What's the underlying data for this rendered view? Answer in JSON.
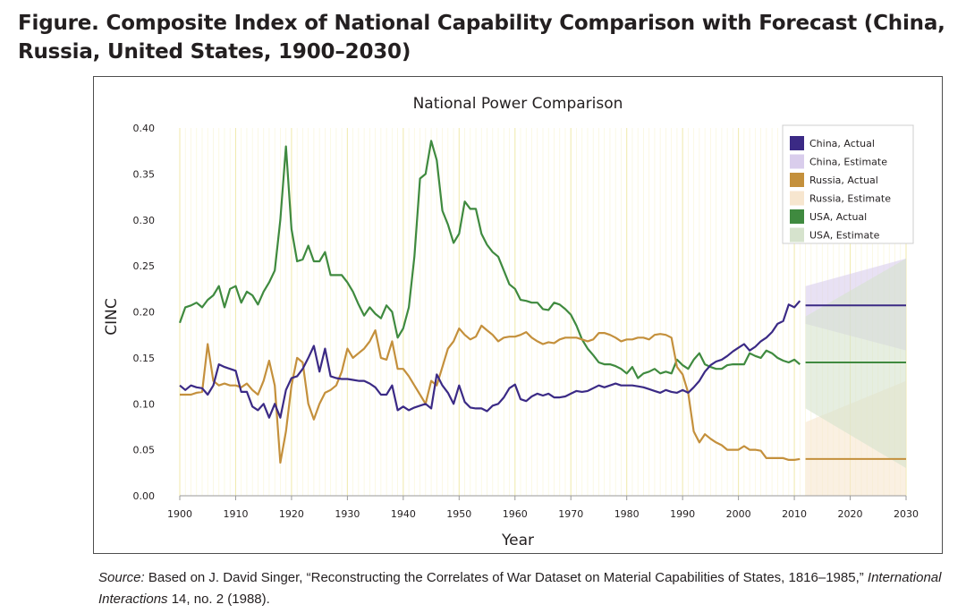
{
  "figure": {
    "title": "Figure. Composite Index of National Capability Comparison with Forecast (China, Russia, United States, 1900–2030)"
  },
  "source": {
    "label": "Source:",
    "text_1": " Based on J. David Singer, “Reconstructing the Correlates of War Dataset on Material Capabilities of States, 1816–1985,” ",
    "journal": "International Interactions",
    "text_2": " 14, no. 2 (1988)."
  },
  "chart_data": {
    "type": "line",
    "title": "National Power Comparison",
    "xlabel": "Year",
    "ylabel": "CINC",
    "xlim": [
      1900,
      2030
    ],
    "ylim": [
      0,
      0.4
    ],
    "x_ticks": [
      "1900",
      "1910",
      "1920",
      "1930",
      "1940",
      "1950",
      "1960",
      "1970",
      "1980",
      "1990",
      "2000",
      "2010",
      "2020",
      "2030"
    ],
    "y_ticks": [
      "0.00",
      "0.05",
      "0.10",
      "0.15",
      "0.20",
      "0.25",
      "0.30",
      "0.35",
      "0.40"
    ],
    "grid": "vertical",
    "legend_position": "top-right",
    "legend": [
      {
        "label": "China, Actual",
        "color": "#3b2a85"
      },
      {
        "label": "China, Estimate",
        "color": "#d9cdec"
      },
      {
        "label": "Russia, Actual",
        "color": "#c4903c"
      },
      {
        "label": "Russia, Estimate",
        "color": "#f7e6cf"
      },
      {
        "label": "USA, Actual",
        "color": "#3f8a3f"
      },
      {
        "label": "USA, Estimate",
        "color": "#d6e3cd"
      }
    ],
    "series": [
      {
        "name": "USA, Actual",
        "color": "#3f8a3f",
        "x": [
          1900,
          1901,
          1902,
          1903,
          1904,
          1905,
          1906,
          1907,
          1908,
          1909,
          1910,
          1911,
          1912,
          1913,
          1914,
          1915,
          1916,
          1917,
          1918,
          1919,
          1920,
          1921,
          1922,
          1923,
          1924,
          1925,
          1926,
          1927,
          1928,
          1929,
          1930,
          1931,
          1932,
          1933,
          1934,
          1935,
          1936,
          1937,
          1938,
          1939,
          1940,
          1941,
          1942,
          1943,
          1944,
          1945,
          1946,
          1947,
          1948,
          1949,
          1950,
          1951,
          1952,
          1953,
          1954,
          1955,
          1956,
          1957,
          1958,
          1959,
          1960,
          1961,
          1962,
          1963,
          1964,
          1965,
          1966,
          1967,
          1968,
          1969,
          1970,
          1971,
          1972,
          1973,
          1974,
          1975,
          1976,
          1977,
          1978,
          1979,
          1980,
          1981,
          1982,
          1983,
          1984,
          1985,
          1986,
          1987,
          1988,
          1989,
          1990,
          1991,
          1992,
          1993,
          1994,
          1995,
          1996,
          1997,
          1998,
          1999,
          2000,
          2001,
          2002,
          2003,
          2004,
          2005,
          2006,
          2007,
          2008,
          2009,
          2010,
          2011
        ],
        "y": [
          0.188,
          0.205,
          0.207,
          0.21,
          0.205,
          0.213,
          0.218,
          0.228,
          0.205,
          0.225,
          0.228,
          0.21,
          0.222,
          0.218,
          0.208,
          0.222,
          0.232,
          0.245,
          0.3,
          0.38,
          0.29,
          0.255,
          0.257,
          0.272,
          0.255,
          0.255,
          0.265,
          0.24,
          0.24,
          0.24,
          0.232,
          0.222,
          0.208,
          0.196,
          0.205,
          0.198,
          0.193,
          0.207,
          0.2,
          0.172,
          0.182,
          0.205,
          0.26,
          0.345,
          0.35,
          0.386,
          0.365,
          0.31,
          0.295,
          0.275,
          0.285,
          0.32,
          0.312,
          0.312,
          0.285,
          0.273,
          0.265,
          0.26,
          0.245,
          0.23,
          0.225,
          0.213,
          0.212,
          0.21,
          0.21,
          0.203,
          0.202,
          0.21,
          0.208,
          0.203,
          0.197,
          0.185,
          0.17,
          0.16,
          0.153,
          0.145,
          0.143,
          0.143,
          0.141,
          0.138,
          0.133,
          0.14,
          0.128,
          0.133,
          0.135,
          0.138,
          0.133,
          0.135,
          0.133,
          0.148,
          0.142,
          0.138,
          0.148,
          0.155,
          0.143,
          0.14,
          0.138,
          0.138,
          0.142,
          0.143,
          0.143,
          0.143,
          0.155,
          0.152,
          0.15,
          0.158,
          0.155,
          0.15,
          0.147,
          0.145,
          0.148,
          0.143
        ]
      },
      {
        "name": "Russia, Actual",
        "color": "#c4903c",
        "x": [
          1900,
          1901,
          1902,
          1903,
          1904,
          1905,
          1906,
          1907,
          1908,
          1909,
          1910,
          1911,
          1912,
          1913,
          1914,
          1915,
          1916,
          1917,
          1918,
          1919,
          1920,
          1921,
          1922,
          1923,
          1924,
          1925,
          1926,
          1927,
          1928,
          1929,
          1930,
          1931,
          1932,
          1933,
          1934,
          1935,
          1936,
          1937,
          1938,
          1939,
          1940,
          1941,
          1942,
          1943,
          1944,
          1945,
          1946,
          1947,
          1948,
          1949,
          1950,
          1951,
          1952,
          1953,
          1954,
          1955,
          1956,
          1957,
          1958,
          1959,
          1960,
          1961,
          1962,
          1963,
          1964,
          1965,
          1966,
          1967,
          1968,
          1969,
          1970,
          1971,
          1972,
          1973,
          1974,
          1975,
          1976,
          1977,
          1978,
          1979,
          1980,
          1981,
          1982,
          1983,
          1984,
          1985,
          1986,
          1987,
          1988,
          1989,
          1990,
          1991,
          1992,
          1993,
          1994,
          1995,
          1996,
          1997,
          1998,
          1999,
          2000,
          2001,
          2002,
          2003,
          2004,
          2005,
          2006,
          2007,
          2008,
          2009,
          2010,
          2011
        ],
        "y": [
          0.11,
          0.11,
          0.11,
          0.112,
          0.113,
          0.165,
          0.125,
          0.12,
          0.122,
          0.12,
          0.12,
          0.118,
          0.122,
          0.115,
          0.11,
          0.125,
          0.147,
          0.12,
          0.036,
          0.07,
          0.12,
          0.15,
          0.145,
          0.1,
          0.083,
          0.1,
          0.112,
          0.115,
          0.12,
          0.135,
          0.16,
          0.15,
          0.155,
          0.16,
          0.168,
          0.18,
          0.15,
          0.148,
          0.168,
          0.138,
          0.138,
          0.13,
          0.12,
          0.11,
          0.1,
          0.125,
          0.12,
          0.14,
          0.16,
          0.168,
          0.182,
          0.175,
          0.17,
          0.173,
          0.185,
          0.18,
          0.175,
          0.168,
          0.172,
          0.173,
          0.173,
          0.175,
          0.178,
          0.172,
          0.168,
          0.165,
          0.167,
          0.166,
          0.17,
          0.172,
          0.172,
          0.172,
          0.17,
          0.168,
          0.17,
          0.177,
          0.177,
          0.175,
          0.172,
          0.168,
          0.17,
          0.17,
          0.172,
          0.172,
          0.17,
          0.175,
          0.176,
          0.175,
          0.172,
          0.14,
          0.132,
          0.112,
          0.07,
          0.058,
          0.067,
          0.062,
          0.058,
          0.055,
          0.05,
          0.05,
          0.05,
          0.054,
          0.05,
          0.05,
          0.049,
          0.041,
          0.041,
          0.041,
          0.041,
          0.039,
          0.039,
          0.04
        ]
      },
      {
        "name": "China, Actual",
        "color": "#3b2a85",
        "x": [
          1900,
          1901,
          1902,
          1903,
          1904,
          1905,
          1906,
          1907,
          1908,
          1909,
          1910,
          1911,
          1912,
          1913,
          1914,
          1915,
          1916,
          1917,
          1918,
          1919,
          1920,
          1921,
          1922,
          1923,
          1924,
          1925,
          1926,
          1927,
          1928,
          1929,
          1930,
          1931,
          1932,
          1933,
          1934,
          1935,
          1936,
          1937,
          1938,
          1939,
          1940,
          1941,
          1942,
          1943,
          1944,
          1945,
          1946,
          1947,
          1948,
          1949,
          1950,
          1951,
          1952,
          1953,
          1954,
          1955,
          1956,
          1957,
          1958,
          1959,
          1960,
          1961,
          1962,
          1963,
          1964,
          1965,
          1966,
          1967,
          1968,
          1969,
          1970,
          1971,
          1972,
          1973,
          1974,
          1975,
          1976,
          1977,
          1978,
          1979,
          1980,
          1981,
          1982,
          1983,
          1984,
          1985,
          1986,
          1987,
          1988,
          1989,
          1990,
          1991,
          1992,
          1993,
          1994,
          1995,
          1996,
          1997,
          1998,
          1999,
          2000,
          2001,
          2002,
          2003,
          2004,
          2005,
          2006,
          2007,
          2008,
          2009,
          2010,
          2011
        ],
        "y": [
          0.12,
          0.115,
          0.12,
          0.118,
          0.117,
          0.11,
          0.12,
          0.143,
          0.14,
          0.138,
          0.136,
          0.113,
          0.113,
          0.097,
          0.093,
          0.1,
          0.085,
          0.1,
          0.085,
          0.115,
          0.128,
          0.13,
          0.138,
          0.15,
          0.163,
          0.135,
          0.16,
          0.13,
          0.128,
          0.127,
          0.127,
          0.126,
          0.125,
          0.125,
          0.122,
          0.118,
          0.11,
          0.11,
          0.12,
          0.093,
          0.097,
          0.093,
          0.096,
          0.098,
          0.1,
          0.095,
          0.132,
          0.12,
          0.112,
          0.1,
          0.12,
          0.102,
          0.096,
          0.095,
          0.095,
          0.092,
          0.098,
          0.1,
          0.107,
          0.117,
          0.121,
          0.105,
          0.103,
          0.108,
          0.111,
          0.109,
          0.111,
          0.107,
          0.107,
          0.108,
          0.111,
          0.114,
          0.113,
          0.114,
          0.117,
          0.12,
          0.118,
          0.12,
          0.122,
          0.12,
          0.12,
          0.12,
          0.119,
          0.118,
          0.116,
          0.114,
          0.112,
          0.115,
          0.113,
          0.112,
          0.115,
          0.112,
          0.118,
          0.125,
          0.135,
          0.142,
          0.146,
          0.148,
          0.152,
          0.157,
          0.161,
          0.165,
          0.158,
          0.162,
          0.168,
          0.172,
          0.178,
          0.187,
          0.19,
          0.208,
          0.205,
          0.212
        ]
      },
      {
        "name": "China, Estimate",
        "color": "#d9cdec",
        "x": [
          2012,
          2030
        ],
        "upper": [
          0.228,
          0.258
        ],
        "lower": [
          0.187,
          0.158
        ],
        "point": [
          0.207,
          0.207
        ]
      },
      {
        "name": "Russia, Estimate",
        "color": "#f7e6cf",
        "x": [
          2012,
          2030
        ],
        "upper": [
          0.08,
          0.125
        ],
        "lower": [
          0,
          0
        ],
        "point": [
          0.04,
          0.04
        ]
      },
      {
        "name": "USA, Estimate",
        "color": "#d6e3cd",
        "x": [
          2012,
          2030
        ],
        "upper": [
          0.195,
          0.258
        ],
        "lower": [
          0.095,
          0.03
        ],
        "point": [
          0.145,
          0.145
        ]
      }
    ]
  }
}
